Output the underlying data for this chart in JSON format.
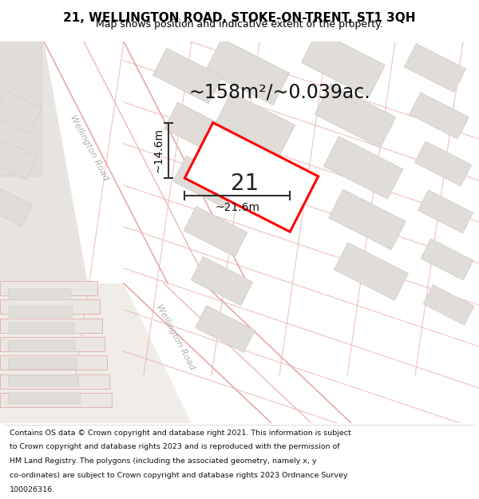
{
  "title": "21, WELLINGTON ROAD, STOKE-ON-TRENT, ST1 3QH",
  "subtitle": "Map shows position and indicative extent of the property.",
  "area_text": "~158m²/~0.039ac.",
  "label_21": "21",
  "dim_width": "~21.6m",
  "dim_height": "~14.6m",
  "highlight_color": "#ff0000",
  "dim_line_color": "#333333",
  "road_label_color": "#b0b0b0",
  "map_bg": "#f0eee9",
  "road_fill": "#ffffff",
  "road_edge_color": "#e8a8a8",
  "block_fill": "#e0ddd8",
  "block_edge": "#d0ccc8",
  "footer_lines": [
    "Contains OS data © Crown copyright and database right 2021. This information is subject",
    "to Crown copyright and database rights 2023 and is reproduced with the permission of",
    "HM Land Registry. The polygons (including the associated geometry, namely x, y",
    "co-ordinates) are subject to Crown copyright and database rights 2023 Ordnance Survey",
    "100026316."
  ],
  "title_fontsize": 11,
  "subtitle_fontsize": 9,
  "area_fontsize": 17,
  "label_fontsize": 20,
  "dim_fontsize": 10,
  "road_label_fontsize": 8,
  "footer_fontsize": 6.8
}
